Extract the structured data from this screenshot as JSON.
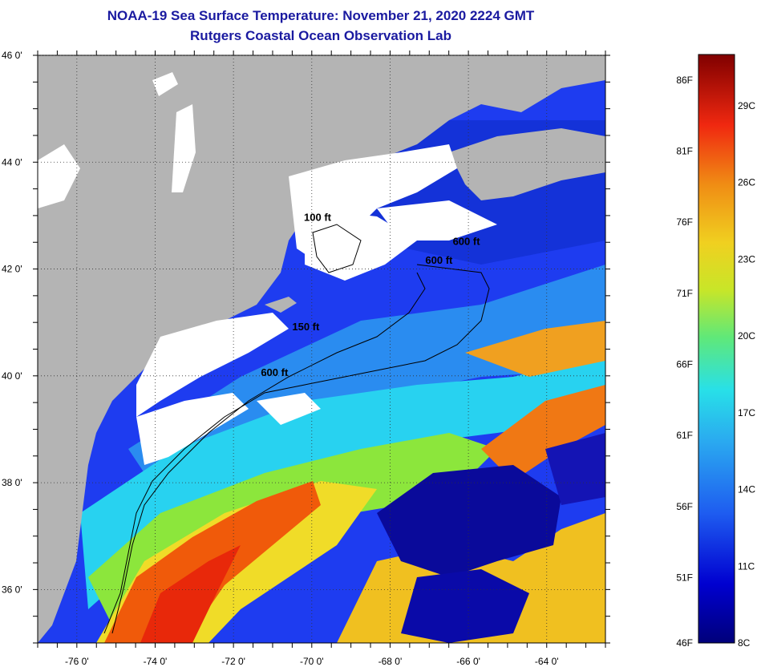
{
  "header": {
    "title": "NOAA-19 Sea Surface Temperature:  November 21, 2020 2224 GMT",
    "subtitle": "Rutgers Coastal Ocean Observation Lab"
  },
  "map": {
    "lat_labels": [
      {
        "value": 46,
        "label": "46 0'"
      },
      {
        "value": 44,
        "label": "44 0'"
      },
      {
        "value": 42,
        "label": "42 0'"
      },
      {
        "value": 40,
        "label": "40 0'"
      },
      {
        "value": 38,
        "label": "38 0'"
      },
      {
        "value": 36,
        "label": "36 0'"
      }
    ],
    "lon_labels": [
      {
        "value": -76,
        "label": "-76 0'"
      },
      {
        "value": -74,
        "label": "-74 0'"
      },
      {
        "value": -72,
        "label": "-72 0'"
      },
      {
        "value": -70,
        "label": "-70 0'"
      },
      {
        "value": -68,
        "label": "-68 0'"
      },
      {
        "value": -66,
        "label": "-66 0'"
      },
      {
        "value": -64,
        "label": "-64 0'"
      }
    ],
    "lat_range": [
      35,
      46
    ],
    "lon_range": [
      -77,
      -62.5
    ],
    "contour_labels": [
      {
        "text": "150 ft",
        "lon": -70.5,
        "lat": 40.85
      },
      {
        "text": "600 ft",
        "lon": -71.3,
        "lat": 40.0
      },
      {
        "text": "600 ft",
        "lon": -67.1,
        "lat": 42.1
      },
      {
        "text": "600 ft",
        "lon": -66.4,
        "lat": 42.45
      },
      {
        "text": "100 ft",
        "lon": -70.2,
        "lat": 42.9
      }
    ]
  },
  "colorbar": {
    "fahrenheit": [
      {
        "value": 86,
        "label": "86F"
      },
      {
        "value": 81,
        "label": "81F"
      },
      {
        "value": 76,
        "label": "76F"
      },
      {
        "value": 71,
        "label": "71F"
      },
      {
        "value": 66,
        "label": "66F"
      },
      {
        "value": 61,
        "label": "61F"
      },
      {
        "value": 56,
        "label": "56F"
      },
      {
        "value": 51,
        "label": "51F"
      },
      {
        "value": 46,
        "label": "46F"
      }
    ],
    "celsius": [
      {
        "value": 29,
        "label": "29C"
      },
      {
        "value": 26,
        "label": "26C"
      },
      {
        "value": 23,
        "label": "23C"
      },
      {
        "value": 20,
        "label": "20C"
      },
      {
        "value": 17,
        "label": "17C"
      },
      {
        "value": 14,
        "label": "14C"
      },
      {
        "value": 11,
        "label": "11C"
      },
      {
        "value": 8,
        "label": "8C"
      }
    ],
    "range_c": [
      8,
      31
    ]
  },
  "colors": {
    "land": "#b4b4b4",
    "cloud": "#ffffff",
    "title": "#1a1aa0",
    "deep_blue": "#0a0a9a",
    "blue": "#1e3cf0",
    "light_blue": "#2a8cf0",
    "cyan": "#28d2f0",
    "green": "#8ce63c",
    "yellow": "#f0dc28",
    "orange": "#f09614",
    "red": "#f03c0a"
  }
}
